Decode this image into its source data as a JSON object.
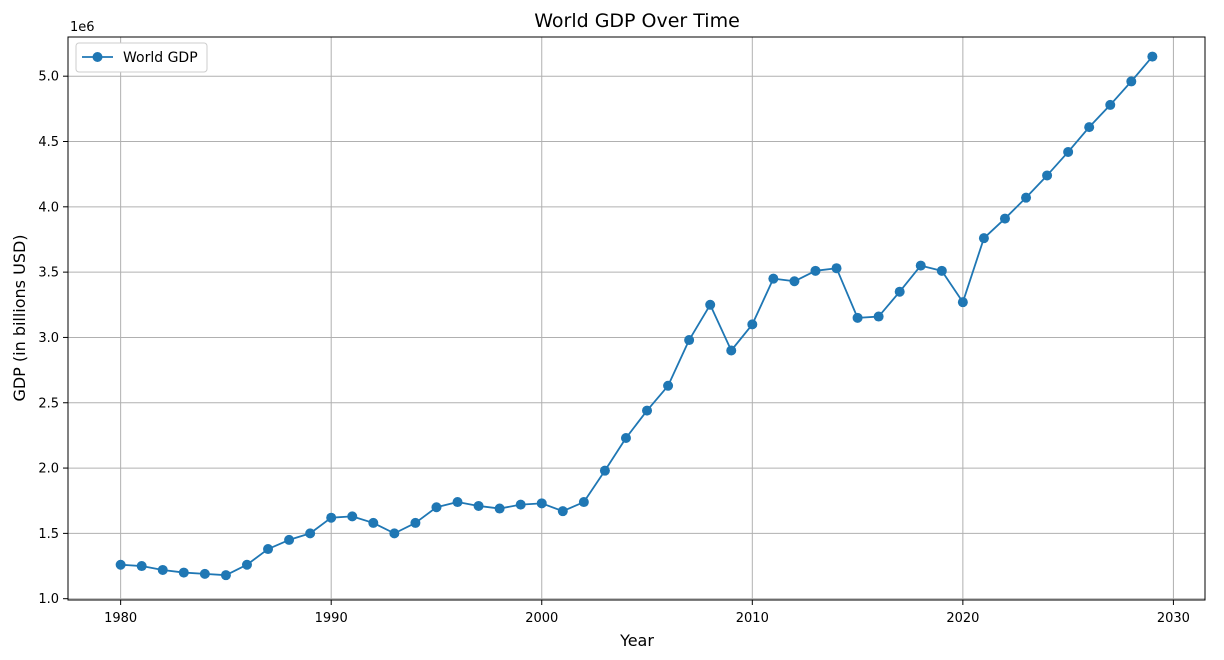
{
  "chart_data": {
    "type": "line",
    "title": "World GDP Over Time",
    "xlabel": "Year",
    "ylabel": "GDP (in billions USD)",
    "y_offset_label": "1e6",
    "xlim": [
      1977.5,
      2031.5
    ],
    "ylim": [
      0.99,
      5.3
    ],
    "x_ticks": [
      1980,
      1990,
      2000,
      2010,
      2020,
      2030
    ],
    "x_tick_labels": [
      "1980",
      "1990",
      "2000",
      "2010",
      "2020",
      "2030"
    ],
    "y_ticks": [
      1.0,
      1.5,
      2.0,
      2.5,
      3.0,
      3.5,
      4.0,
      4.5,
      5.0
    ],
    "y_tick_labels": [
      "1.0",
      "1.5",
      "2.0",
      "2.5",
      "3.0",
      "3.5",
      "4.0",
      "4.5",
      "5.0"
    ],
    "grid": true,
    "legend_position": "top-left",
    "series": [
      {
        "name": "World GDP",
        "color": "#1f77b4",
        "marker": "circle",
        "x": [
          1980,
          1981,
          1982,
          1983,
          1984,
          1985,
          1986,
          1987,
          1988,
          1989,
          1990,
          1991,
          1992,
          1993,
          1994,
          1995,
          1996,
          1997,
          1998,
          1999,
          2000,
          2001,
          2002,
          2003,
          2004,
          2005,
          2006,
          2007,
          2008,
          2009,
          2010,
          2011,
          2012,
          2013,
          2014,
          2015,
          2016,
          2017,
          2018,
          2019,
          2020,
          2021,
          2022,
          2023,
          2024,
          2025,
          2026,
          2027,
          2028,
          2029
        ],
        "values": [
          1.26,
          1.25,
          1.22,
          1.2,
          1.19,
          1.18,
          1.26,
          1.38,
          1.45,
          1.5,
          1.62,
          1.63,
          1.58,
          1.5,
          1.58,
          1.7,
          1.74,
          1.71,
          1.69,
          1.72,
          1.73,
          1.67,
          1.74,
          1.98,
          2.23,
          2.44,
          2.63,
          2.98,
          3.25,
          2.9,
          3.1,
          3.45,
          3.43,
          3.51,
          3.53,
          3.15,
          3.16,
          3.35,
          3.55,
          3.51,
          3.27,
          3.76,
          3.91,
          4.07,
          4.24,
          4.42,
          4.61,
          4.78,
          4.96,
          5.15
        ]
      }
    ]
  }
}
